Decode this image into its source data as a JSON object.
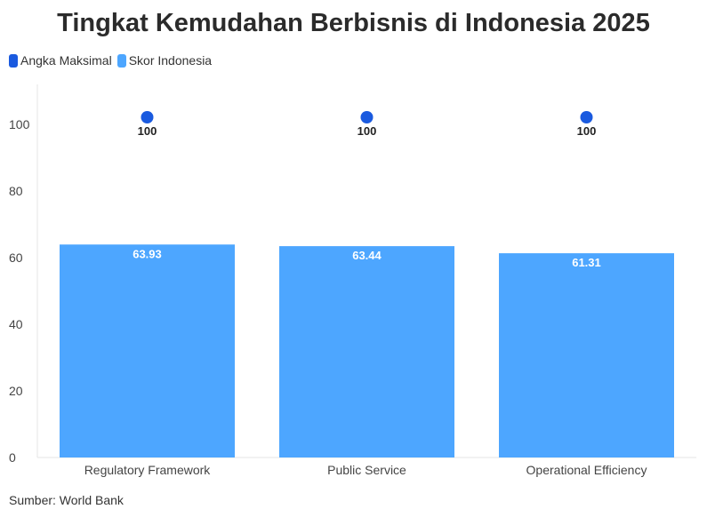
{
  "colors": {
    "max": "#1a5adf",
    "score": "#4da6ff"
  },
  "chart_data": {
    "type": "bar",
    "title": "Tingkat Kemudahan Berbisnis di Indonesia 2025",
    "categories": [
      "Regulatory Framework",
      "Public Service",
      "Operational Efficiency"
    ],
    "series": [
      {
        "name": "Angka Maksimal",
        "type": "scatter",
        "values": [
          100,
          100,
          100
        ],
        "labels": [
          "100",
          "100",
          "100"
        ]
      },
      {
        "name": "Skor Indonesia",
        "type": "bar",
        "values": [
          63.93,
          63.44,
          61.31
        ],
        "labels": [
          "63.93",
          "63.44",
          "61.31"
        ]
      }
    ],
    "yticks": [
      0,
      20,
      40,
      60,
      80,
      100
    ],
    "ytick_labels": [
      "0",
      "20",
      "40",
      "60",
      "80",
      "100"
    ],
    "ylim": [
      0,
      110
    ],
    "legend_position": "top-left",
    "grid": false,
    "source": "Sumber: World Bank"
  }
}
